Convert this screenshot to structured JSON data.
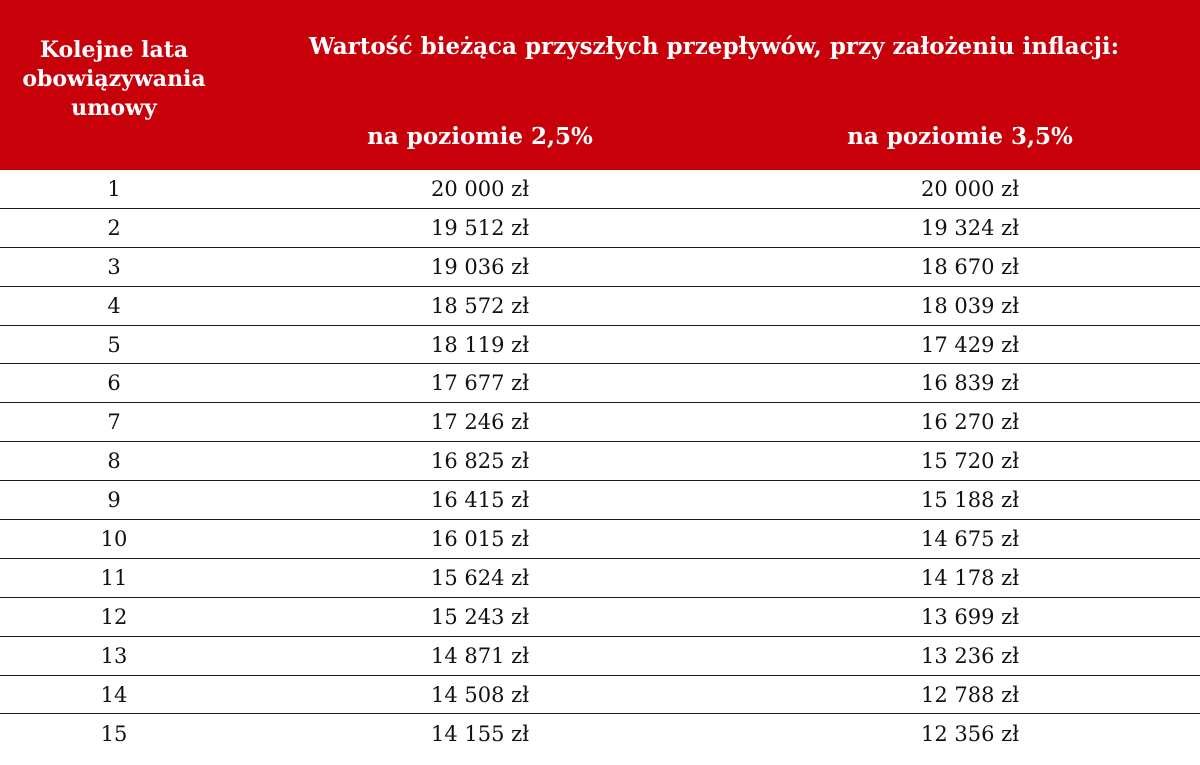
{
  "header": {
    "col1_lines": [
      "Kolejne lata",
      "obowiązywania",
      "umowy"
    ],
    "group_title": "Wartość bieżąca przyszłych przepływów, przy założeniu inflacji:",
    "sub_col2": "na poziomie 2,5%",
    "sub_col3": "na poziomie 3,5%"
  },
  "rows": [
    {
      "year": "1",
      "v25": "20 000 zł",
      "v35": "20 000 zł"
    },
    {
      "year": "2",
      "v25": "19 512 zł",
      "v35": "19 324 zł"
    },
    {
      "year": "3",
      "v25": "19 036 zł",
      "v35": "18 670 zł"
    },
    {
      "year": "4",
      "v25": "18 572 zł",
      "v35": "18 039 zł"
    },
    {
      "year": "5",
      "v25": "18 119 zł",
      "v35": "17 429 zł"
    },
    {
      "year": "6",
      "v25": "17 677 zł",
      "v35": "16 839 zł"
    },
    {
      "year": "7",
      "v25": "17 246 zł",
      "v35": "16 270 zł"
    },
    {
      "year": "8",
      "v25": "16 825 zł",
      "v35": "15 720 zł"
    },
    {
      "year": "9",
      "v25": "16 415 zł",
      "v35": "15 188 zł"
    },
    {
      "year": "10",
      "v25": "16 015 zł",
      "v35": "14 675 zł"
    },
    {
      "year": "11",
      "v25": "15 624 zł",
      "v35": "14 178 zł"
    },
    {
      "year": "12",
      "v25": "15 243 zł",
      "v35": "13 699 zł"
    },
    {
      "year": "13",
      "v25": "14 871 zł",
      "v35": "13 236 zł"
    },
    {
      "year": "14",
      "v25": "14 508 zł",
      "v35": "12 788 zł"
    },
    {
      "year": "15",
      "v25": "14 155 zł",
      "v35": "12 356 zł"
    }
  ],
  "colors": {
    "header_bg": "#c8000a",
    "header_text": "#ffffff",
    "rule": "#1a1a1a"
  }
}
